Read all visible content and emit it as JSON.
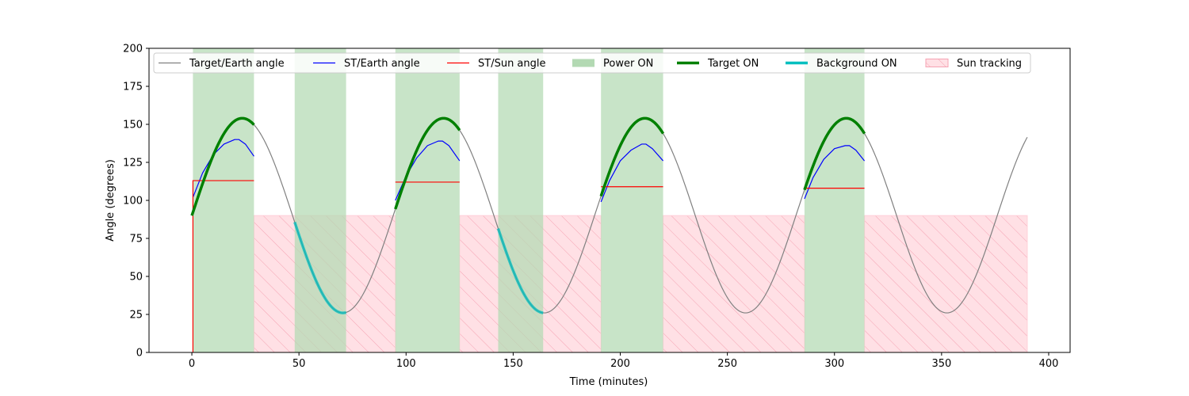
{
  "chart_data": {
    "type": "line",
    "title": "",
    "xlabel": "Time (minutes)",
    "ylabel": "Angle (degrees)",
    "xlim": [
      -20,
      410
    ],
    "ylim": [
      0,
      200
    ],
    "xticks": [
      0,
      50,
      100,
      150,
      200,
      250,
      300,
      350,
      400
    ],
    "yticks": [
      0,
      25,
      50,
      75,
      100,
      125,
      150,
      175,
      200
    ],
    "grid": false,
    "legend_position": "top",
    "legend": [
      {
        "label": "Target/Earth angle",
        "kind": "line",
        "color": "#808080"
      },
      {
        "label": "ST/Earth angle",
        "kind": "line",
        "color": "#0000ff"
      },
      {
        "label": "ST/Sun angle",
        "kind": "line",
        "color": "#ff0000"
      },
      {
        "label": "Power ON",
        "kind": "patch",
        "color": "#b3d9b3"
      },
      {
        "label": "Target ON",
        "kind": "thickline",
        "color": "#008000"
      },
      {
        "label": "Background ON",
        "kind": "thickline",
        "color": "#00bfbf"
      },
      {
        "label": "Sun tracking",
        "kind": "hatch",
        "color": "#ffc0cb"
      }
    ],
    "target_earth_angle": {
      "description_model": "sinusoid",
      "period_min": 94,
      "mean_deg": 90,
      "amplitude_deg": 64,
      "phase_zero_min": 0,
      "x_range": [
        0,
        390
      ],
      "color": "#808080"
    },
    "power_on_intervals": [
      [
        0.5,
        29
      ],
      [
        48,
        72
      ],
      [
        95,
        125
      ],
      [
        143,
        164
      ],
      [
        191,
        220
      ],
      [
        286,
        314
      ]
    ],
    "sun_tracking_intervals": [
      [
        29,
        95
      ],
      [
        125,
        191
      ],
      [
        220,
        286
      ],
      [
        314,
        390
      ]
    ],
    "sun_tracking_level_deg": 90,
    "target_on_segments": [
      [
        0,
        29
      ],
      [
        95,
        125
      ],
      [
        191,
        220
      ],
      [
        286,
        314
      ]
    ],
    "background_on_segments": [
      [
        48,
        72
      ],
      [
        143,
        164
      ]
    ],
    "st_earth_angle_segments": [
      {
        "x": [
          0.5,
          5,
          10,
          15,
          20,
          22,
          25,
          29
        ],
        "y": [
          102,
          118,
          130,
          137,
          140,
          140,
          137,
          129
        ]
      },
      {
        "x": [
          95,
          100,
          105,
          110,
          115,
          117,
          120,
          125
        ],
        "y": [
          100,
          116,
          128,
          136,
          139,
          139,
          136,
          126
        ]
      },
      {
        "x": [
          191,
          195,
          200,
          205,
          210,
          212,
          215,
          220
        ],
        "y": [
          99,
          113,
          126,
          133,
          137,
          137,
          134,
          126
        ]
      },
      {
        "x": [
          286,
          290,
          295,
          300,
          305,
          307,
          310,
          314
        ],
        "y": [
          101,
          115,
          127,
          134,
          136,
          136,
          133,
          126
        ]
      }
    ],
    "st_sun_angle_segments": [
      {
        "x": [
          0.5,
          0.5,
          29
        ],
        "y": [
          0,
          113,
          113
        ]
      },
      {
        "x": [
          95,
          125
        ],
        "y": [
          112,
          112
        ]
      },
      {
        "x": [
          191,
          220
        ],
        "y": [
          109,
          109
        ]
      },
      {
        "x": [
          286,
          314
        ],
        "y": [
          108,
          108
        ]
      }
    ]
  }
}
